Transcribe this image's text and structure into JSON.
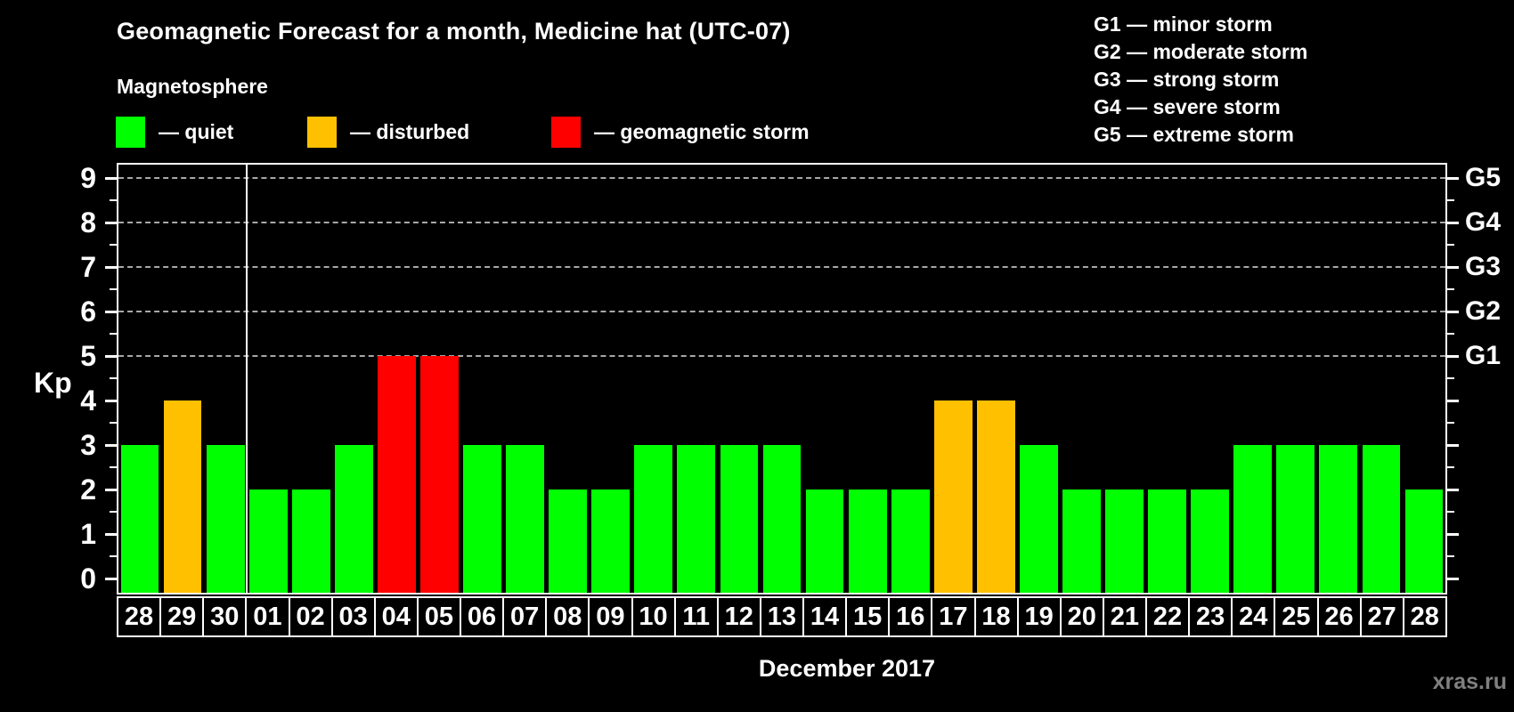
{
  "title": "Geomagnetic Forecast for a month, Medicine hat (UTC-07)",
  "subtitle": "Magnetosphere",
  "legend": [
    {
      "label": "— quiet",
      "status": "quiet",
      "color": "#00ff00"
    },
    {
      "label": "— disturbed",
      "status": "disturbed",
      "color": "#ffc000"
    },
    {
      "label": "— geomagnetic storm",
      "status": "storm",
      "color": "#ff0000"
    }
  ],
  "storm_scale": [
    "G1 — minor storm",
    "G2 — moderate storm",
    "G3 — strong storm",
    "G4 — severe storm",
    "G5 — extreme storm"
  ],
  "watermark": "xras.ru",
  "chart_data": {
    "type": "bar",
    "title": "Geomagnetic Forecast for a month, Medicine hat (UTC-07)",
    "xlabel": "December 2017",
    "ylabel": "Kp",
    "ylim": [
      0,
      9
    ],
    "yticks": [
      0,
      1,
      2,
      3,
      4,
      5,
      6,
      7,
      8,
      9
    ],
    "gridlines_at": [
      5,
      6,
      7,
      8,
      9
    ],
    "grid": "dashed horizontal at storm levels only",
    "right_axis": [
      {
        "kp": 5,
        "label": "G1"
      },
      {
        "kp": 6,
        "label": "G2"
      },
      {
        "kp": 7,
        "label": "G3"
      },
      {
        "kp": 8,
        "label": "G4"
      },
      {
        "kp": 9,
        "label": "G5"
      }
    ],
    "month_separator_after_index": 2,
    "categories": [
      "28",
      "29",
      "30",
      "01",
      "02",
      "03",
      "04",
      "05",
      "06",
      "07",
      "08",
      "09",
      "10",
      "11",
      "12",
      "13",
      "14",
      "15",
      "16",
      "17",
      "18",
      "19",
      "20",
      "21",
      "22",
      "23",
      "24",
      "25",
      "26",
      "27",
      "28"
    ],
    "values": [
      3,
      4,
      3,
      2,
      2,
      3,
      5,
      5,
      3,
      3,
      2,
      2,
      3,
      3,
      3,
      3,
      2,
      2,
      2,
      4,
      4,
      3,
      2,
      2,
      2,
      2,
      3,
      3,
      3,
      3,
      2
    ],
    "statuses": [
      "quiet",
      "disturbed",
      "quiet",
      "quiet",
      "quiet",
      "quiet",
      "storm",
      "storm",
      "quiet",
      "quiet",
      "quiet",
      "quiet",
      "quiet",
      "quiet",
      "quiet",
      "quiet",
      "quiet",
      "quiet",
      "quiet",
      "disturbed",
      "disturbed",
      "quiet",
      "quiet",
      "quiet",
      "quiet",
      "quiet",
      "quiet",
      "quiet",
      "quiet",
      "quiet",
      "quiet"
    ],
    "colors": {
      "quiet": "#00ff00",
      "disturbed": "#ffc000",
      "storm": "#ff0000"
    }
  }
}
